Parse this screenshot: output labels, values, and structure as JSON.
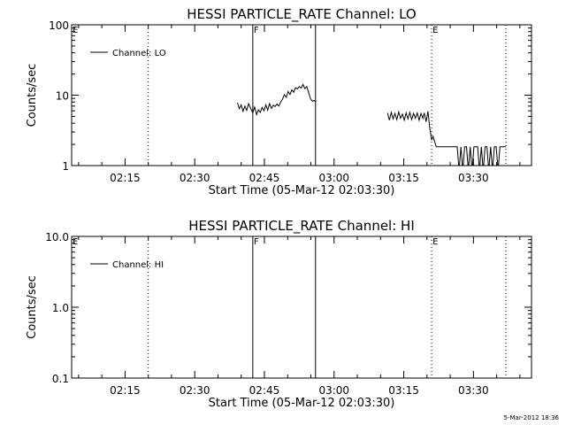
{
  "footer": {
    "timestamp": "5-Mar-2012 18:36"
  },
  "chart_data": [
    {
      "type": "line",
      "title": "HESSI PARTICLE_RATE Channel: LO",
      "xlabel": "Start Time (05-Mar-12 02:03:30)",
      "ylabel": "Counts/sec",
      "x_ticks": [
        "02:15",
        "02:30",
        "02:45",
        "03:00",
        "03:15",
        "03:30"
      ],
      "x_tick_minutes": [
        15,
        30,
        45,
        60,
        75,
        90
      ],
      "xlim_minutes": [
        3.5,
        102.5
      ],
      "y_scale": "log",
      "ylim": [
        1,
        100
      ],
      "y_ticks": [
        "1",
        "10",
        "100"
      ],
      "y_tick_values": [
        1,
        10,
        100
      ],
      "legend": {
        "label": "Channel: LO",
        "position": "top-left"
      },
      "markers": [
        {
          "label": "E",
          "minute": 3.5,
          "style": "dotted"
        },
        {
          "label": "",
          "minute": 20.0,
          "style": "dotted"
        },
        {
          "label": "F",
          "minute": 42.5,
          "style": "solid"
        },
        {
          "label": "",
          "minute": 56.0,
          "style": "solid"
        },
        {
          "label": "E",
          "minute": 81.0,
          "style": "dotted"
        },
        {
          "label": "",
          "minute": 97.0,
          "style": "dotted"
        }
      ],
      "series": [
        {
          "name": "Channel: LO",
          "segments": [
            {
              "x": [
                39.2,
                39.6,
                40.0,
                40.4,
                40.8,
                41.2,
                41.6,
                42.0,
                42.5,
                42.9,
                43.3,
                43.7,
                44.1,
                44.5,
                44.9,
                45.3,
                45.7,
                46.1,
                46.5,
                46.9,
                47.3,
                47.7,
                48.1,
                48.5,
                48.9,
                49.3,
                49.7,
                50.1,
                50.5,
                50.9,
                51.3,
                51.7,
                52.1,
                52.5,
                52.9,
                53.3,
                53.7,
                54.1,
                54.5,
                54.9,
                55.3,
                55.7,
                56.1
              ],
              "y": [
                7.8,
                6.4,
                7.3,
                5.9,
                7.0,
                6.1,
                7.6,
                6.6,
                5.6,
                6.8,
                5.3,
                6.2,
                5.7,
                6.7,
                6.0,
                7.3,
                6.1,
                7.6,
                6.5,
                7.2,
                6.9,
                7.5,
                7.0,
                8.0,
                8.8,
                10.2,
                9.3,
                11.3,
                10.2,
                11.9,
                11.0,
                12.8,
                12.3,
                13.3,
                12.6,
                14.2,
                12.4,
                13.3,
                11.0,
                9.0,
                8.2,
                8.4,
                8.0
              ]
            },
            {
              "x": [
                71.5,
                71.9,
                72.3,
                72.7,
                73.1,
                73.5,
                73.9,
                74.3,
                74.7,
                75.1,
                75.5,
                75.9,
                76.3,
                76.7,
                77.1,
                77.5,
                77.9,
                78.3,
                78.7,
                79.1,
                79.4,
                79.8,
                80.2,
                80.6,
                81.0,
                81.3,
                82.0,
                83.5,
                85.0,
                86.5,
                86.9,
                87.3,
                87.7,
                88.1,
                88.5,
                88.9,
                89.3,
                89.7,
                90.1,
                90.5,
                90.9,
                91.3,
                91.7,
                92.1,
                92.5,
                92.9,
                93.3,
                93.7,
                94.1,
                94.5,
                94.9,
                95.3,
                95.7,
                96.1,
                96.5,
                97.0
              ],
              "y": [
                5.6,
                4.4,
                5.7,
                4.6,
                5.5,
                4.5,
                5.8,
                4.7,
                5.4,
                4.4,
                5.6,
                4.6,
                5.7,
                4.5,
                5.5,
                4.7,
                5.6,
                4.4,
                5.5,
                4.7,
                5.6,
                4.2,
                5.9,
                3.4,
                2.3,
                2.6,
                1.85,
                1.85,
                1.85,
                1.85,
                0.85,
                1.85,
                0.85,
                1.85,
                1.85,
                0.85,
                1.85,
                0.85,
                1.85,
                1.85,
                1.85,
                0.85,
                1.85,
                0.85,
                1.85,
                1.85,
                0.85,
                1.85,
                0.85,
                1.85,
                1.85,
                0.85,
                1.85,
                1.85,
                1.85,
                1.85
              ]
            }
          ]
        }
      ]
    },
    {
      "type": "line",
      "title": "HESSI PARTICLE_RATE Channel: HI",
      "xlabel": "Start Time (05-Mar-12 02:03:30)",
      "ylabel": "Counts/sec",
      "x_ticks": [
        "02:15",
        "02:30",
        "02:45",
        "03:00",
        "03:15",
        "03:30"
      ],
      "x_tick_minutes": [
        15,
        30,
        45,
        60,
        75,
        90
      ],
      "xlim_minutes": [
        3.5,
        102.5
      ],
      "y_scale": "log",
      "ylim": [
        0.1,
        10.0
      ],
      "y_ticks": [
        "0.1",
        "1.0",
        "10.0"
      ],
      "y_tick_values": [
        0.1,
        1.0,
        10.0
      ],
      "legend": {
        "label": "Channel: HI",
        "position": "top-left"
      },
      "markers": [
        {
          "label": "E",
          "minute": 3.5,
          "style": "dotted"
        },
        {
          "label": "",
          "minute": 20.0,
          "style": "dotted"
        },
        {
          "label": "F",
          "minute": 42.5,
          "style": "solid"
        },
        {
          "label": "",
          "minute": 56.0,
          "style": "solid"
        },
        {
          "label": "E",
          "minute": 81.0,
          "style": "dotted"
        },
        {
          "label": "",
          "minute": 97.0,
          "style": "dotted"
        }
      ],
      "series": [
        {
          "name": "Channel: HI",
          "segments": []
        }
      ]
    }
  ]
}
